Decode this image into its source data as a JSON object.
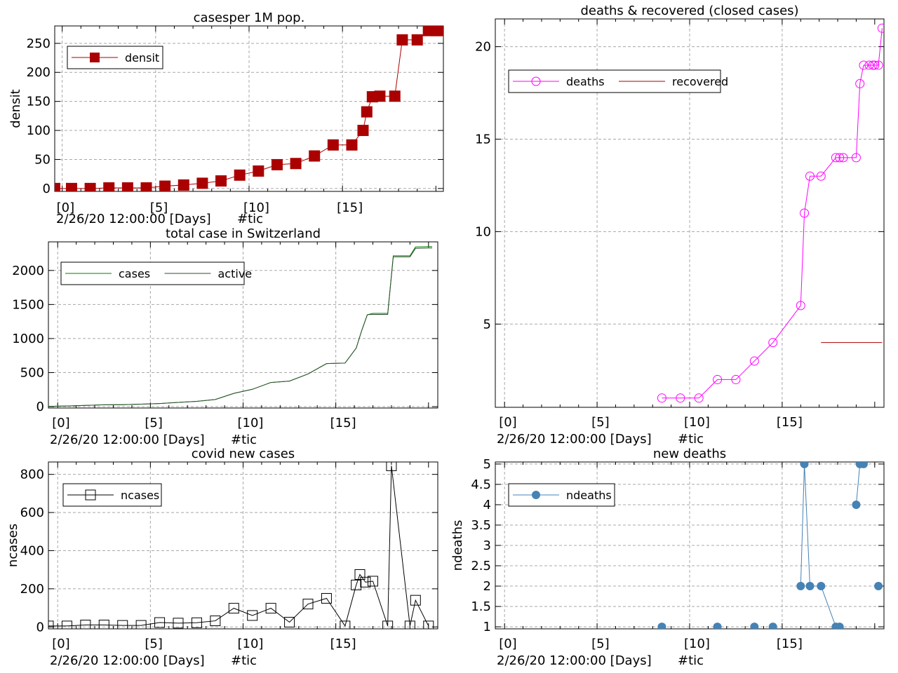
{
  "chart_data": [
    {
      "id": "p1",
      "type": "line",
      "title": "casesper 1M pop.",
      "ylabel": "densit",
      "xlabel": "",
      "x_ticks": [
        "[0]",
        "[5]",
        "[10]",
        "[15]"
      ],
      "x_caption": "2/26/20 12:00:00 [Days]",
      "x_caption2": "#tic",
      "xlim": [
        -0.4,
        20.4
      ],
      "ylim": [
        -5,
        280
      ],
      "y_ticks": [
        0,
        50,
        100,
        150,
        200,
        250
      ],
      "grid": true,
      "legend": "top-left",
      "series": [
        {
          "name": "densit",
          "color": "#aa0000",
          "marker": "square",
          "markersize": 16,
          "x": [
            -0.4,
            0.5,
            1.5,
            2.5,
            3.5,
            4.5,
            5.5,
            6.5,
            7.5,
            8.5,
            9.5,
            10.5,
            11.5,
            12.5,
            13.5,
            14.5,
            15.5,
            16.1,
            16.3,
            16.6,
            17,
            17.8,
            18.2,
            19,
            19.6,
            20,
            20.2
          ],
          "y": [
            0,
            0,
            0,
            1,
            1,
            1,
            4,
            6,
            9,
            13,
            23,
            30,
            41,
            43,
            56,
            75,
            75,
            100,
            132,
            158,
            159,
            159,
            256,
            256,
            272,
            272,
            272
          ]
        }
      ]
    },
    {
      "id": "p2",
      "type": "line",
      "title": "deaths & recovered (closed cases)",
      "ylabel": "",
      "xlabel": "",
      "x_ticks": [
        "[0]",
        "[5]",
        "[10]",
        "[15]"
      ],
      "x_caption": "2/26/20 12:00:00 [Days]",
      "x_caption2": "#tic",
      "xlim": [
        -0.5,
        20.5
      ],
      "ylim": [
        0.5,
        21.5
      ],
      "y_ticks": [
        5,
        10,
        15,
        20
      ],
      "grid": true,
      "legend": "top-left",
      "series": [
        {
          "name": "deaths",
          "color": "#ff00ff",
          "marker": "circle",
          "markersize": 12,
          "x": [
            8.5,
            9.5,
            10.5,
            11.5,
            12.5,
            13.5,
            14.5,
            16.0,
            16.2,
            16.5,
            17.1,
            17.9,
            18.1,
            18.3,
            19.0,
            19.2,
            19.4,
            19.7,
            19.9,
            20.0,
            20.2,
            20.4
          ],
          "y": [
            1,
            1,
            1,
            2,
            2,
            3,
            4,
            6,
            11,
            13,
            13,
            14,
            14,
            14,
            14,
            18,
            19,
            19,
            19,
            19,
            19,
            21
          ]
        },
        {
          "name": "recovered",
          "color": "#aa0000",
          "marker": "none",
          "x": [
            17.1,
            20.4
          ],
          "y": [
            4,
            4
          ]
        }
      ]
    },
    {
      "id": "p3",
      "type": "line",
      "title": "total case in Switzerland",
      "ylabel": "",
      "xlabel": "",
      "x_ticks": [
        "[0]",
        "[5]",
        "[10]",
        "[15]"
      ],
      "x_caption": "2/26/20 12:00:00 [Days]",
      "x_caption2": "#tic",
      "xlim": [
        -0.5,
        20.5
      ],
      "ylim": [
        -20,
        2420
      ],
      "y_ticks": [
        0,
        500,
        1000,
        1500,
        2000
      ],
      "grid": true,
      "legend": "top-left",
      "series": [
        {
          "name": "cases",
          "color": "#008000",
          "x": [
            -0.5,
            0.5,
            1.5,
            2.5,
            3.5,
            4.5,
            5.5,
            6.5,
            7.5,
            8.5,
            9.5,
            10.5,
            11.5,
            12.5,
            13.5,
            14.5,
            15.5,
            16.1,
            16.4,
            16.7,
            17.0,
            17.8,
            18.1,
            19.0,
            19.3,
            20.0,
            20.2
          ],
          "y": [
            5,
            10,
            18,
            27,
            29,
            36,
            46,
            62,
            78,
            105,
            195,
            255,
            355,
            375,
            480,
            632,
            640,
            860,
            1120,
            1350,
            1370,
            1370,
            2215,
            2215,
            2345,
            2350,
            2350
          ]
        },
        {
          "name": "active",
          "color": "#2f4f2f",
          "x": [
            -0.5,
            0.5,
            1.5,
            2.5,
            3.5,
            4.5,
            5.5,
            6.5,
            7.5,
            8.5,
            9.5,
            10.5,
            11.5,
            12.5,
            13.5,
            14.5,
            15.5,
            16.1,
            16.4,
            16.7,
            17.0,
            17.8,
            18.1,
            19.0,
            19.3,
            20.0,
            20.2
          ],
          "y": [
            5,
            10,
            18,
            27,
            29,
            36,
            46,
            62,
            78,
            105,
            195,
            255,
            355,
            375,
            480,
            632,
            640,
            860,
            1120,
            1350,
            1355,
            1355,
            2200,
            2200,
            2325,
            2330,
            2330
          ]
        }
      ]
    },
    {
      "id": "p4",
      "type": "line",
      "title": "covid new cases",
      "ylabel": "ncases",
      "xlabel": "",
      "x_ticks": [
        "[0]",
        "[5]",
        "[10]",
        "[15]"
      ],
      "x_caption": "2/26/20 12:00:00 [Days]",
      "x_caption2": "#tic",
      "xlim": [
        -0.5,
        20.5
      ],
      "ylim": [
        -10,
        865
      ],
      "y_ticks": [
        0,
        200,
        400,
        600,
        800
      ],
      "grid": true,
      "legend": "top-left",
      "series": [
        {
          "name": "ncases",
          "color": "#000000",
          "marker": "square-open",
          "markersize": 14,
          "x": [
            -0.5,
            0.5,
            1.5,
            2.5,
            3.5,
            4.5,
            5.5,
            6.5,
            7.5,
            8.5,
            9.5,
            10.5,
            11.5,
            12.5,
            13.5,
            14.5,
            15.5,
            16.1,
            16.3,
            16.6,
            17.0,
            17.8,
            18.0,
            19.0,
            19.3,
            20.0
          ],
          "y": [
            5,
            5,
            10,
            10,
            8,
            8,
            23,
            20,
            22,
            32,
            98,
            60,
            98,
            25,
            120,
            150,
            5,
            220,
            275,
            235,
            240,
            5,
            845,
            5,
            140,
            5
          ]
        }
      ]
    },
    {
      "id": "p5",
      "type": "scatter",
      "title": "new deaths",
      "ylabel": "ndeaths",
      "xlabel": "",
      "x_ticks": [
        "[0]",
        "[5]",
        "[10]",
        "[15]"
      ],
      "x_caption": "2/26/20 12:00:00 [Days]",
      "x_caption2": "#tic",
      "xlim": [
        -0.5,
        20.5
      ],
      "ylim": [
        0.95,
        5.05
      ],
      "y_ticks": [
        1,
        1.5,
        2,
        2.5,
        3,
        3.5,
        4,
        4.5,
        5
      ],
      "grid": true,
      "legend": "top-left",
      "series": [
        {
          "name": "ndeaths",
          "color": "#4682b4",
          "marker": "circle-filled",
          "markersize": 12,
          "x": [
            8.5,
            11.5,
            13.5,
            14.5,
            16.0,
            16.2,
            16.5,
            17.1,
            17.9,
            18.1,
            19.0,
            19.2,
            19.4,
            20.2
          ],
          "y": [
            1,
            1,
            1,
            1,
            2,
            5,
            2,
            2,
            1,
            1,
            4,
            5,
            5,
            2
          ],
          "segments": [
            [
              4,
              5,
              6,
              7,
              8,
              9
            ],
            [
              10,
              11,
              12
            ]
          ]
        }
      ]
    }
  ]
}
